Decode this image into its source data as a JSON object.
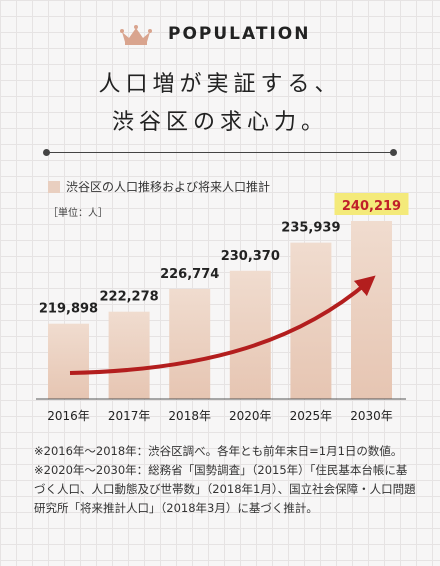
{
  "header": {
    "label": "POPULATION",
    "headline_line1": "人口増が実証する、",
    "headline_line2": "渋谷区の求心力。",
    "crown_icon": "crown-icon"
  },
  "colors": {
    "bar": "#e6c5b2",
    "bar_top": "#f0dccf",
    "arrow": "#b31e1e",
    "highlight": "#f4ea7a",
    "highlight_text": "#c0202a"
  },
  "chart_data": {
    "type": "bar",
    "legend": "渋谷区の人口推移および将来人口推計",
    "unit_label": "［単位：人］",
    "categories": [
      "2016年",
      "2017年",
      "2018年",
      "2020年",
      "2025年",
      "2030年"
    ],
    "values": [
      219898,
      222278,
      226774,
      230370,
      235939,
      240219
    ],
    "value_labels": [
      "219,898",
      "222,278",
      "226,774",
      "230,370",
      "235,939",
      "240,219"
    ],
    "highlight_index": 5
  },
  "footnote": "※2016年～2018年：渋谷区調べ。各年とも前年末日=1月1日の数値。※2020年～2030年：総務省「国勢調査」（2015年）「住民基本台帳に基づく人口、人口動態及び世帯数」（2018年1月）、国立社会保障・人口問題研究所「将来推計人口」（2018年3月）に基づく推計。"
}
